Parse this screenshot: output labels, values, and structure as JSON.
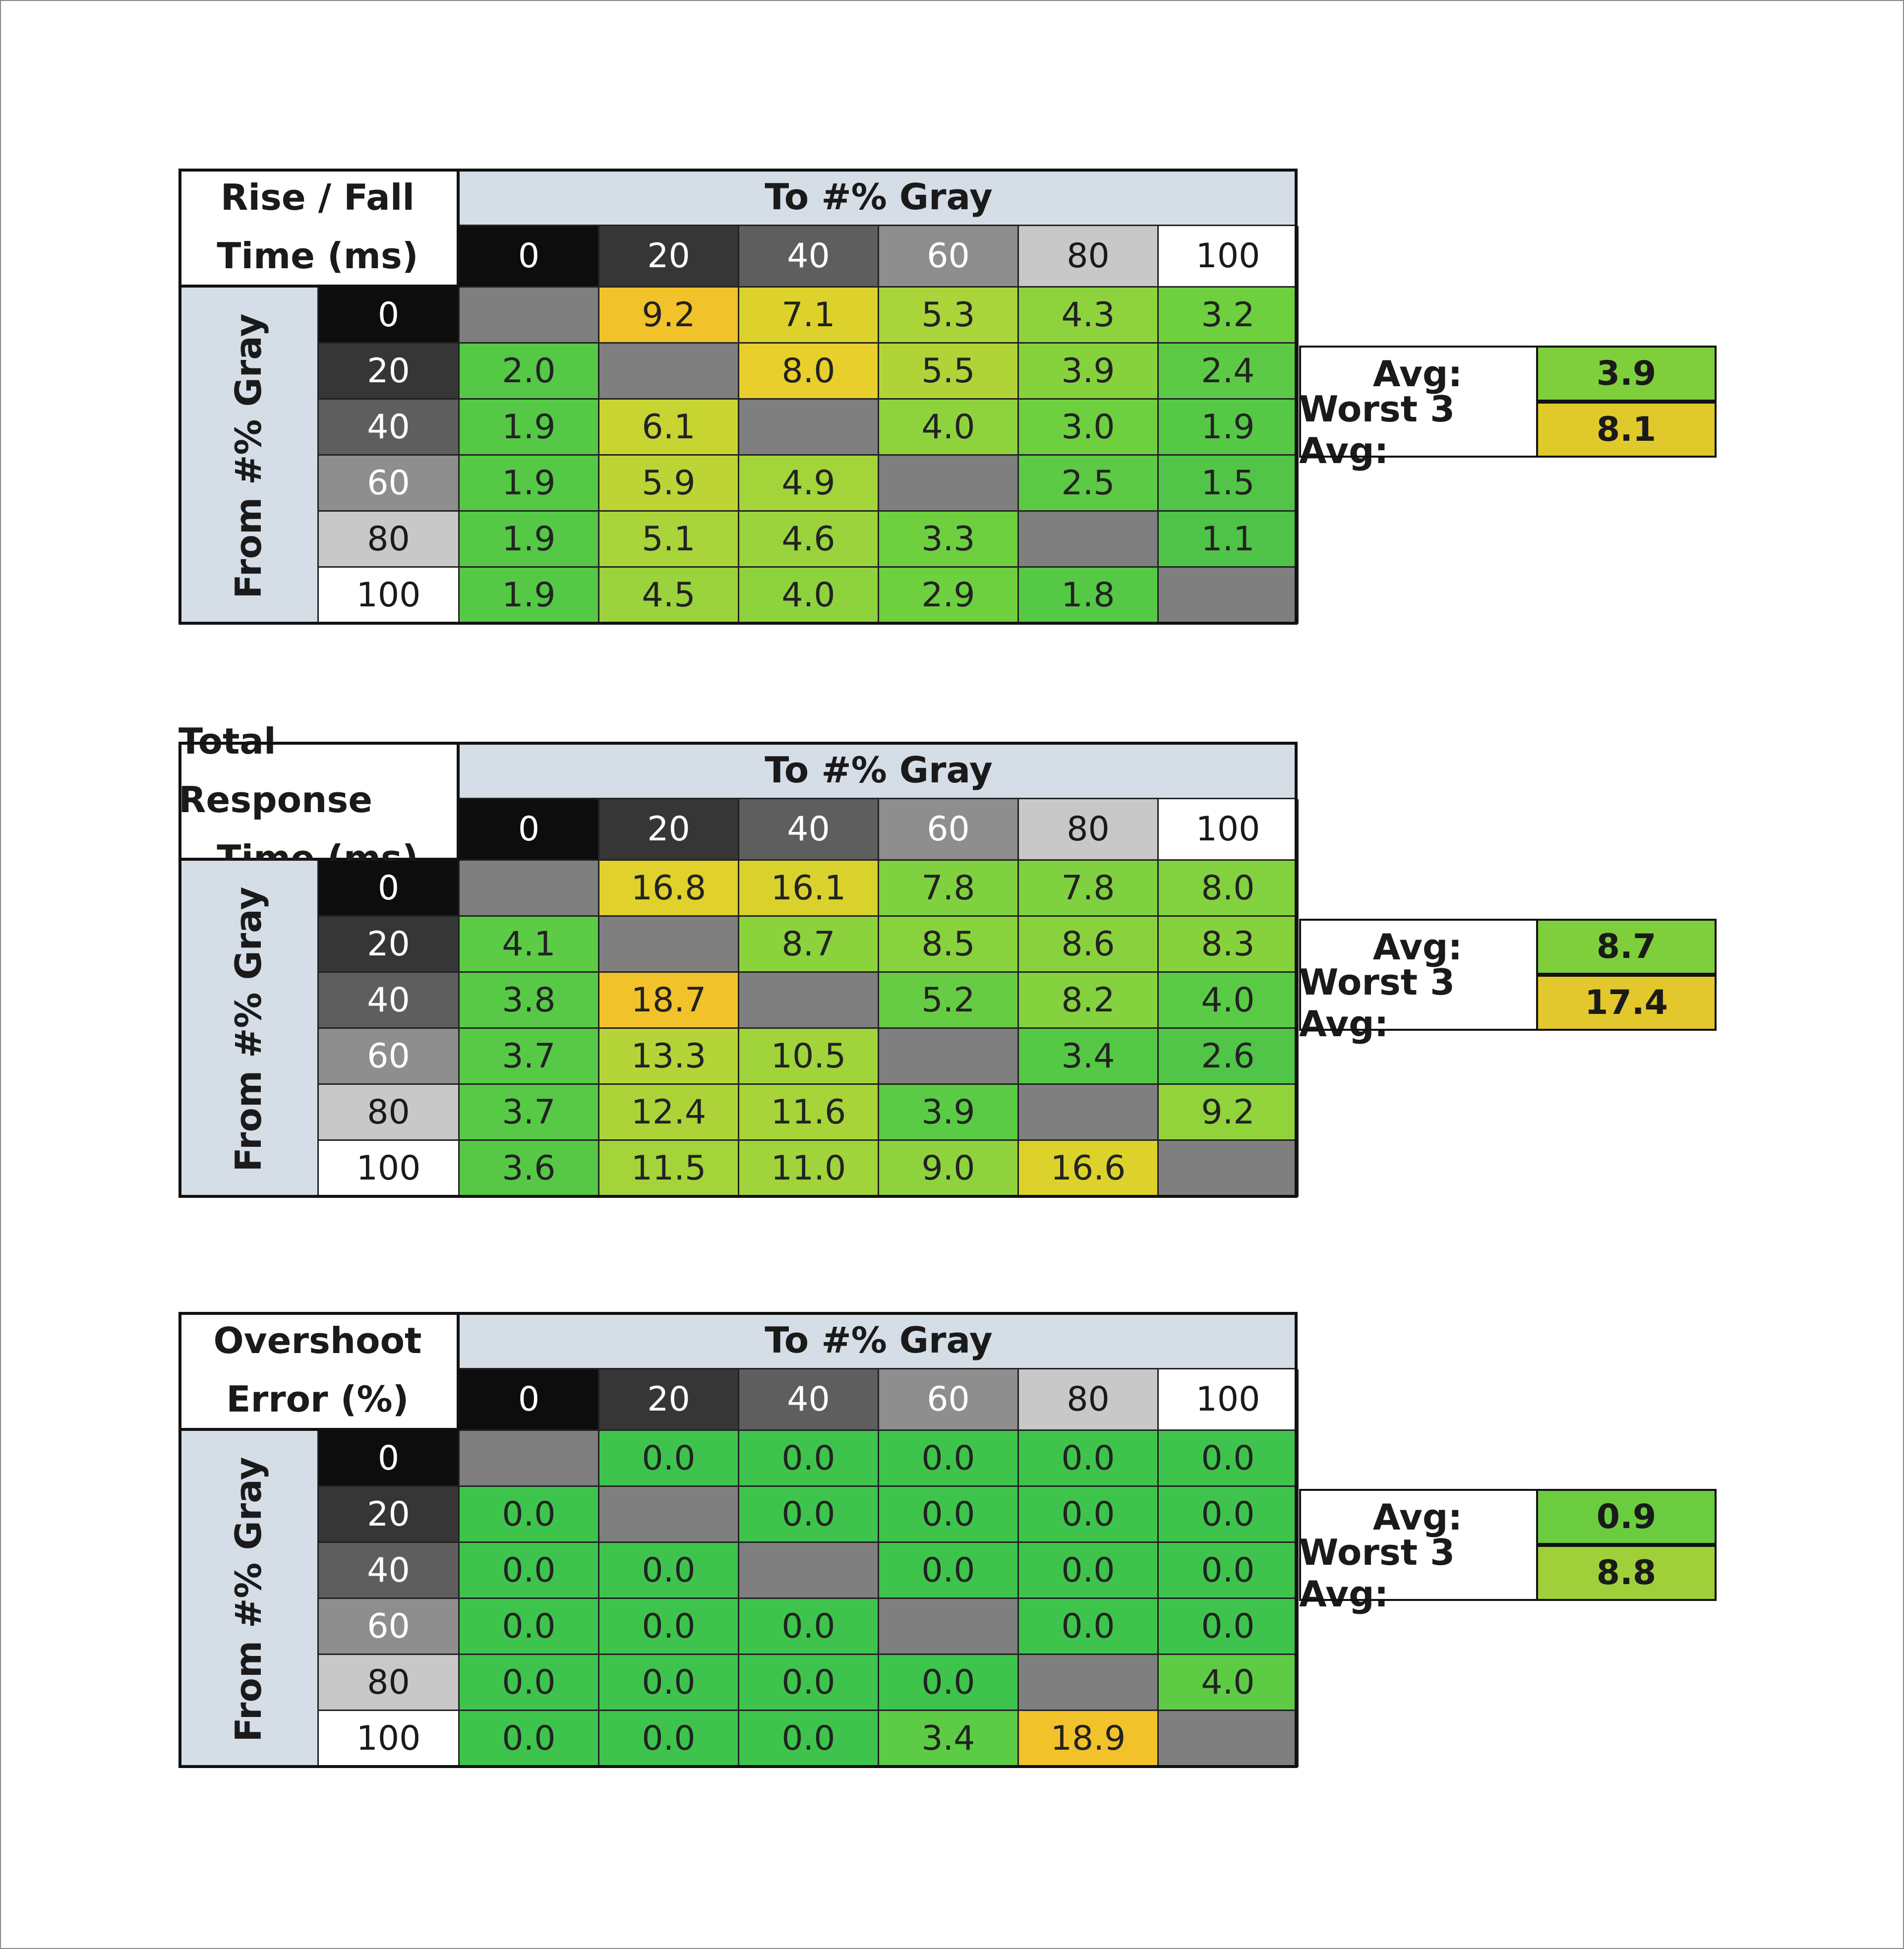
{
  "tables": [
    {
      "corner_line1": "Rise / Fall",
      "corner_line2": "Time (ms)",
      "to_label": "To #% Gray",
      "from_label": "From #% Gray",
      "avg_label": "Avg:",
      "avg_value": "3.9",
      "worst_label": "Worst 3 Avg:",
      "worst_value": "8.1"
    },
    {
      "corner_line1": "Total Response",
      "corner_line2": "Time (ms)",
      "to_label": "To #% Gray",
      "from_label": "From #% Gray",
      "avg_label": "Avg:",
      "avg_value": "8.7",
      "worst_label": "Worst 3 Avg:",
      "worst_value": "17.4"
    },
    {
      "corner_line1": "Overshoot",
      "corner_line2": "Error (%)",
      "to_label": "To #% Gray",
      "from_label": "From #% Gray",
      "avg_label": "Avg:",
      "avg_value": "0.9",
      "worst_label": "Worst 3 Avg:",
      "worst_value": "8.8"
    }
  ],
  "chart_data": [
    {
      "type": "heatmap",
      "title": "Rise / Fall Time (ms)",
      "xlabel": "To #% Gray",
      "ylabel": "From #% Gray",
      "x": [
        "0",
        "20",
        "40",
        "60",
        "80",
        "100"
      ],
      "y": [
        "0",
        "20",
        "40",
        "60",
        "80",
        "100"
      ],
      "values": [
        [
          null,
          "9.2",
          "7.1",
          "5.3",
          "4.3",
          "3.2"
        ],
        [
          "2.0",
          null,
          "8.0",
          "5.5",
          "3.9",
          "2.4"
        ],
        [
          "1.9",
          "6.1",
          null,
          "4.0",
          "3.0",
          "1.9"
        ],
        [
          "1.9",
          "5.9",
          "4.9",
          null,
          "2.5",
          "1.5"
        ],
        [
          "1.9",
          "5.1",
          "4.6",
          "3.3",
          null,
          "1.1"
        ],
        [
          "1.9",
          "4.5",
          "4.0",
          "2.9",
          "1.8",
          null
        ]
      ],
      "colors": [
        [
          null,
          "#f2c22b",
          "#ddd22c",
          "#a9d43a",
          "#8ed33e",
          "#6ecf3f"
        ],
        [
          "#55c846",
          null,
          "#e8cf2c",
          "#b0d438",
          "#86d23d",
          "#5dca45"
        ],
        [
          "#55c846",
          "#c7d432",
          null,
          "#8ed33e",
          "#6ecf3f",
          "#55c846"
        ],
        [
          "#55c846",
          "#bcd435",
          "#a3d43a",
          null,
          "#5dca45",
          "#52c548"
        ],
        [
          "#55c846",
          "#a9d43a",
          "#9ad33b",
          "#6ecf3f",
          null,
          "#4fc448"
        ],
        [
          "#55c846",
          "#9ad33b",
          "#8ed33e",
          "#6ecf3f",
          "#55c846",
          null
        ]
      ]
    },
    {
      "type": "heatmap",
      "title": "Total Response Time (ms)",
      "xlabel": "To #% Gray",
      "ylabel": "From #% Gray",
      "x": [
        "0",
        "20",
        "40",
        "60",
        "80",
        "100"
      ],
      "y": [
        "0",
        "20",
        "40",
        "60",
        "80",
        "100"
      ],
      "values": [
        [
          null,
          "16.8",
          "16.1",
          "7.8",
          "7.8",
          "8.0"
        ],
        [
          "4.1",
          null,
          "8.7",
          "8.5",
          "8.6",
          "8.3"
        ],
        [
          "3.8",
          "18.7",
          null,
          "5.2",
          "8.2",
          "4.0"
        ],
        [
          "3.7",
          "13.3",
          "10.5",
          null,
          "3.4",
          "2.6"
        ],
        [
          "3.7",
          "12.4",
          "11.6",
          "3.9",
          null,
          "9.2"
        ],
        [
          "3.6",
          "11.5",
          "11.0",
          "9.0",
          "16.6",
          null
        ]
      ],
      "colors": [
        [
          null,
          "#e0d12c",
          "#d9d22d",
          "#7fd13f",
          "#7fd13f",
          "#82d13e"
        ],
        [
          "#5ccb45",
          null,
          "#8cd23d",
          "#88d23d",
          "#8ad23d",
          "#86d23d"
        ],
        [
          "#58c946",
          "#f2c22b",
          null,
          "#66cc43",
          "#84d23e",
          "#5acb45"
        ],
        [
          "#57c946",
          "#b5d437",
          "#a0d43a",
          null,
          "#55c846",
          "#50c548"
        ],
        [
          "#57c946",
          "#acd438",
          "#a6d439",
          "#5acb45",
          null,
          "#92d33c"
        ],
        [
          "#56c846",
          "#a4d439",
          "#a0d43a",
          "#8ed33d",
          "#ddd22c",
          null
        ]
      ]
    },
    {
      "type": "heatmap",
      "title": "Overshoot Error (%)",
      "xlabel": "To #% Gray",
      "ylabel": "From #% Gray",
      "x": [
        "0",
        "20",
        "40",
        "60",
        "80",
        "100"
      ],
      "y": [
        "0",
        "20",
        "40",
        "60",
        "80",
        "100"
      ],
      "values": [
        [
          null,
          "0.0",
          "0.0",
          "0.0",
          "0.0",
          "0.0"
        ],
        [
          "0.0",
          null,
          "0.0",
          "0.0",
          "0.0",
          "0.0"
        ],
        [
          "0.0",
          "0.0",
          null,
          "0.0",
          "0.0",
          "0.0"
        ],
        [
          "0.0",
          "0.0",
          "0.0",
          null,
          "0.0",
          "0.0"
        ],
        [
          "0.0",
          "0.0",
          "0.0",
          "0.0",
          null,
          "4.0"
        ],
        [
          "0.0",
          "0.0",
          "0.0",
          "3.4",
          "18.9",
          null
        ]
      ],
      "colors": [
        [
          null,
          "#3ec44c",
          "#3ec44c",
          "#3ec44c",
          "#3ec44c",
          "#3ec44c"
        ],
        [
          "#3ec44c",
          null,
          "#3ec44c",
          "#3ec44c",
          "#3ec44c",
          "#3ec44c"
        ],
        [
          "#3ec44c",
          "#3ec44c",
          null,
          "#3ec44c",
          "#3ec44c",
          "#3ec44c"
        ],
        [
          "#3ec44c",
          "#3ec44c",
          "#3ec44c",
          null,
          "#3ec44c",
          "#3ec44c"
        ],
        [
          "#3ec44c",
          "#3ec44c",
          "#3ec44c",
          "#3ec44c",
          null,
          "#5ecb45"
        ],
        [
          "#3ec44c",
          "#3ec44c",
          "#3ec44c",
          "#5ccb45",
          "#f2c22b",
          null
        ]
      ]
    }
  ],
  "summary_colors": {
    "avg": [
      "#7fcf3c",
      "#7fcf3c",
      "#6ccc40"
    ],
    "worst": [
      "#e0c92b",
      "#e2c82c",
      "#9fd03a"
    ]
  },
  "diagonal_color": "#7f7f7f",
  "header_shades": [
    "#0d0d0d",
    "#363636",
    "#5e5e5e",
    "#8e8e8e",
    "#c8c8c8",
    "#ffffff"
  ],
  "header_text_colors": [
    "#ffffff",
    "#ffffff",
    "#ffffff",
    "#ffffff",
    "#1a1a1a",
    "#1a1a1a"
  ]
}
